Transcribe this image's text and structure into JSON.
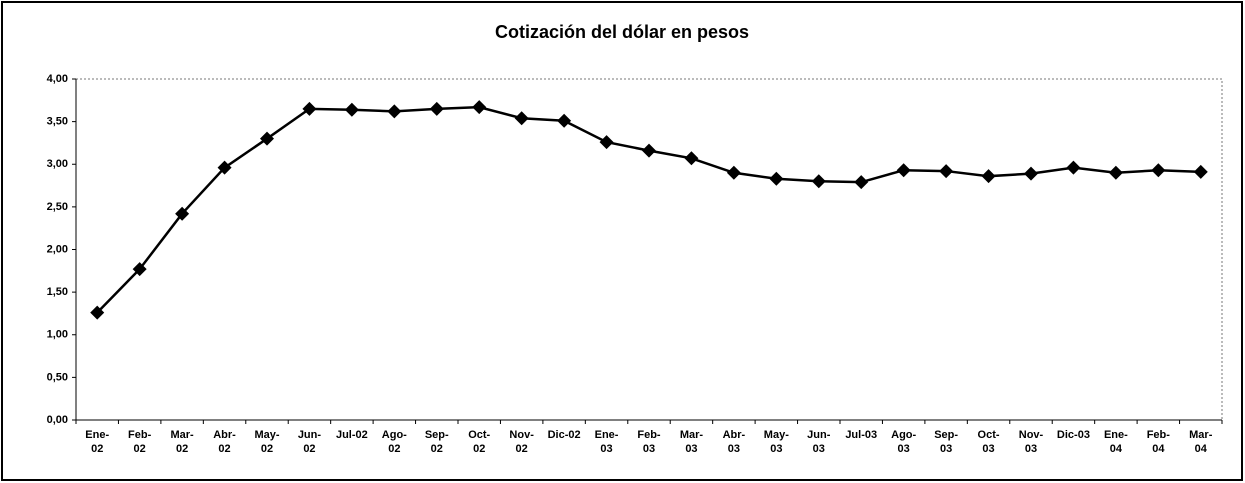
{
  "chart_data": {
    "type": "line",
    "title": "Cotización del dólar en pesos",
    "categories": [
      "Ene-02",
      "Feb-02",
      "Mar-02",
      "Abr-02",
      "May-02",
      "Jun-02",
      "Jul-02",
      "Ago-02",
      "Sep-02",
      "Oct-02",
      "Nov-02",
      "Dic-02",
      "Ene-03",
      "Feb-03",
      "Mar-03",
      "Abr-03",
      "May-03",
      "Jun-03",
      "Jul-03",
      "Ago-03",
      "Sep-03",
      "Oct-03",
      "Nov-03",
      "Dic-03",
      "Ene-04",
      "Feb-04",
      "Mar-04"
    ],
    "series": [
      {
        "color": "#000000",
        "values": [
          1.26,
          1.77,
          2.42,
          2.96,
          3.3,
          3.65,
          3.64,
          3.62,
          3.65,
          3.67,
          3.54,
          3.51,
          3.26,
          3.16,
          3.07,
          2.9,
          2.83,
          2.8,
          2.79,
          2.93,
          2.92,
          2.86,
          2.89,
          2.96,
          2.9,
          2.93,
          2.91
        ]
      }
    ],
    "ylim": [
      0,
      4
    ],
    "yticks": [
      {
        "value": 0,
        "label": "0,00"
      },
      {
        "value": 0.5,
        "label": "0,50"
      },
      {
        "value": 1,
        "label": "1,00"
      },
      {
        "value": 1.5,
        "label": "1,50"
      },
      {
        "value": 2,
        "label": "2,00"
      },
      {
        "value": 2.5,
        "label": "2,50"
      },
      {
        "value": 3,
        "label": "3,00"
      },
      {
        "value": 3.5,
        "label": "3,50"
      },
      {
        "value": 4,
        "label": "4,00"
      }
    ],
    "grid": false
  }
}
